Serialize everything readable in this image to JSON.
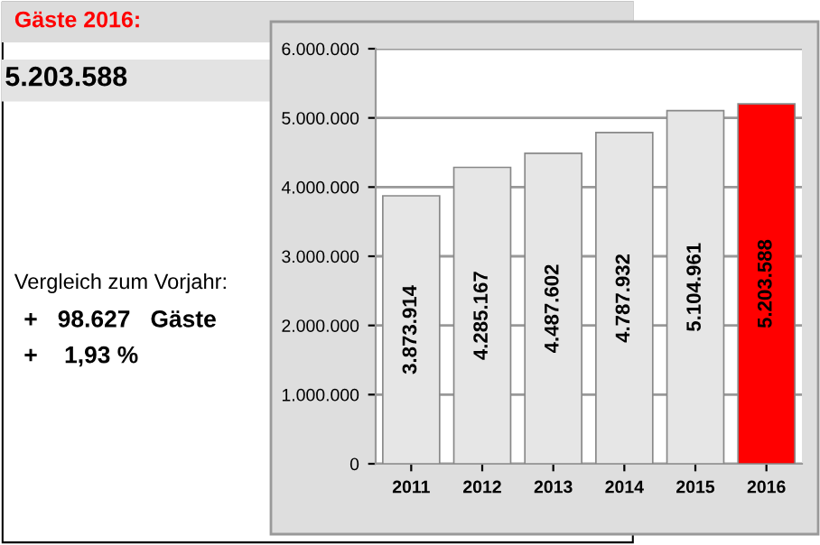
{
  "chart_data": [
    {
      "type": "other",
      "title": "Gäste 2016:",
      "annotations": [
        "5.203.588",
        "Vergleich zum Vorjahr:",
        "+   98.627   Gäste",
        "+    1,93 %"
      ]
    },
    {
      "type": "bar",
      "categories": [
        "2011",
        "2012",
        "2013",
        "2014",
        "2015",
        "2016"
      ],
      "values": [
        3873914,
        4285167,
        4487602,
        4787932,
        5104961,
        5203588
      ],
      "colors": [
        "#e6e6e6",
        "#e6e6e6",
        "#e6e6e6",
        "#e6e6e6",
        "#e6e6e6",
        "#ff0000"
      ],
      "value_labels": [
        "3.873.914",
        "4.285.167",
        "4.487.602",
        "4.787.932",
        "5.104.961",
        "5.203.588"
      ],
      "ylim": [
        0,
        6000000
      ],
      "yticks": [
        0,
        {
          "value": 1000000,
          "label": "1.000.000"
        },
        {
          "value": 2000000,
          "label": "2.000.000"
        },
        {
          "value": 3000000,
          "label": "3.000.000"
        },
        {
          "value": 4000000,
          "label": "4.000.000"
        },
        {
          "value": 5000000,
          "label": "5.000.000"
        },
        {
          "value": 6000000,
          "label": "6.000.000"
        }
      ],
      "grid": "y"
    }
  ]
}
